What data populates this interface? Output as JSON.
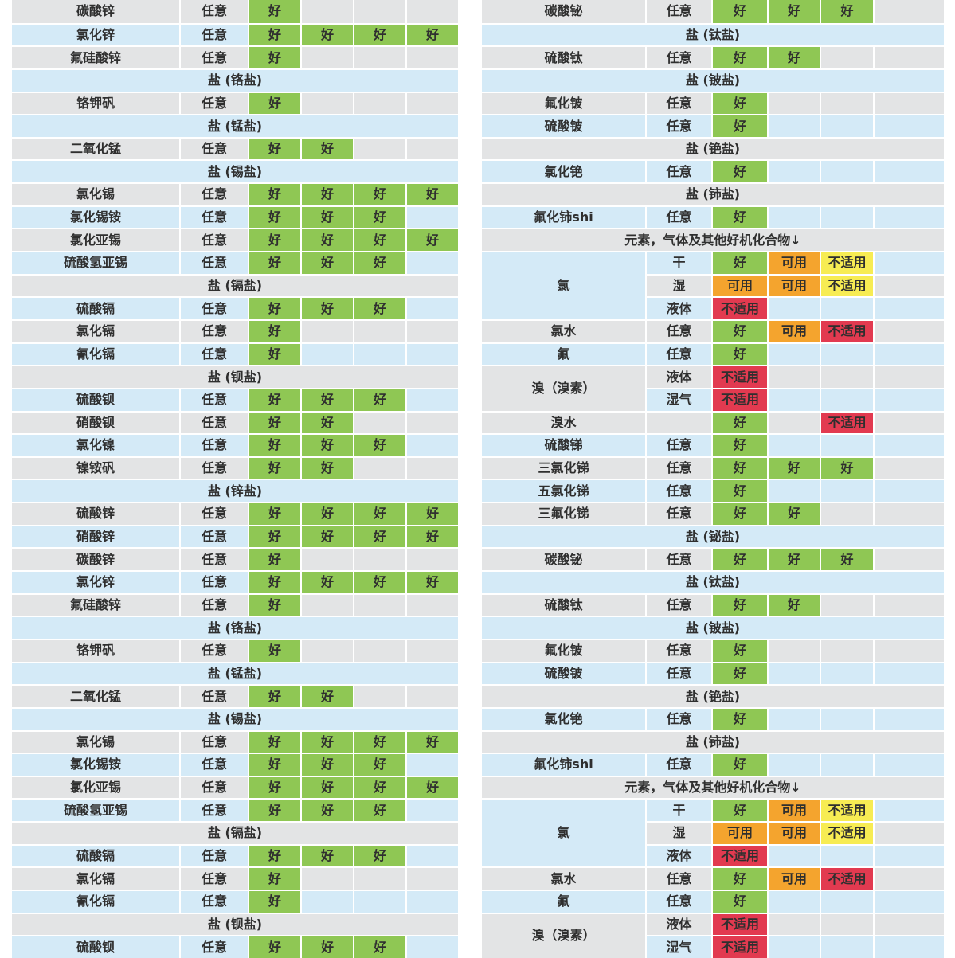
{
  "palette": {
    "row_gray": "#e3e4e5",
    "row_blue": "#d4eaf7",
    "good": "#8fc754",
    "usable": "#f4a42e",
    "na_yellow": "#f7ec53",
    "na_red": "#e23a50",
    "text": "#2f2f2f",
    "grid": "#ffffff"
  },
  "rating_codes": {
    "G": {
      "label": "好",
      "color_key": "good"
    },
    "U": {
      "label": "可用",
      "color_key": "usable"
    },
    "NY": {
      "label": "不适用",
      "color_key": "na_yellow"
    },
    "NR": {
      "label": "不适用",
      "color_key": "na_red"
    }
  },
  "tables": [
    {
      "id": "tbl-left",
      "rows": [
        {
          "type": "item",
          "name": "碳酸锌",
          "cond": "任意",
          "ratings": [
            "G",
            null,
            null,
            null
          ]
        },
        {
          "type": "item",
          "name": "氯化锌",
          "cond": "任意",
          "ratings": [
            "G",
            "G",
            "G",
            "G"
          ]
        },
        {
          "type": "item",
          "name": "氟硅酸锌",
          "cond": "任意",
          "ratings": [
            "G",
            null,
            null,
            null
          ]
        },
        {
          "type": "section",
          "label": "盐 (铬盐)"
        },
        {
          "type": "item",
          "name": "铬钾矾",
          "cond": "任意",
          "ratings": [
            "G",
            null,
            null,
            null
          ]
        },
        {
          "type": "section",
          "label": "盐 (锰盐)"
        },
        {
          "type": "item",
          "name": "二氧化锰",
          "cond": "任意",
          "ratings": [
            "G",
            "G",
            null,
            null
          ]
        },
        {
          "type": "section",
          "label": "盐 (锡盐)"
        },
        {
          "type": "item",
          "name": "氯化锡",
          "cond": "任意",
          "ratings": [
            "G",
            "G",
            "G",
            "G"
          ]
        },
        {
          "type": "item",
          "name": "氯化锡铵",
          "cond": "任意",
          "ratings": [
            "G",
            "G",
            "G",
            null
          ]
        },
        {
          "type": "item",
          "name": "氯化亚锡",
          "cond": "任意",
          "ratings": [
            "G",
            "G",
            "G",
            "G"
          ]
        },
        {
          "type": "item",
          "name": "硫酸氢亚锡",
          "cond": "任意",
          "ratings": [
            "G",
            "G",
            "G",
            null
          ]
        },
        {
          "type": "section",
          "label": "盐 (镉盐)"
        },
        {
          "type": "item",
          "name": "硫酸镉",
          "cond": "任意",
          "ratings": [
            "G",
            "G",
            "G",
            null
          ]
        },
        {
          "type": "item",
          "name": "氯化镉",
          "cond": "任意",
          "ratings": [
            "G",
            null,
            null,
            null
          ]
        },
        {
          "type": "item",
          "name": "氰化镉",
          "cond": "任意",
          "ratings": [
            "G",
            null,
            null,
            null
          ]
        },
        {
          "type": "section",
          "label": "盐 (钡盐)"
        },
        {
          "type": "item",
          "name": "硫酸钡",
          "cond": "任意",
          "ratings": [
            "G",
            "G",
            "G",
            null
          ]
        },
        {
          "type": "item",
          "name": "硝酸钡",
          "cond": "任意",
          "ratings": [
            "G",
            "G",
            null,
            null
          ]
        },
        {
          "type": "item",
          "name": "氯化镍",
          "cond": "任意",
          "ratings": [
            "G",
            "G",
            "G",
            null
          ]
        },
        {
          "type": "item",
          "name": "镍铵矾",
          "cond": "任意",
          "ratings": [
            "G",
            "G",
            null,
            null
          ]
        },
        {
          "type": "section",
          "label": "盐 (锌盐)"
        },
        {
          "type": "item",
          "name": "硫酸锌",
          "cond": "任意",
          "ratings": [
            "G",
            "G",
            "G",
            "G"
          ]
        },
        {
          "type": "item",
          "name": "硝酸锌",
          "cond": "任意",
          "ratings": [
            "G",
            "G",
            "G",
            "G"
          ]
        },
        {
          "type": "item",
          "name": "碳酸锌",
          "cond": "任意",
          "ratings": [
            "G",
            null,
            null,
            null
          ]
        },
        {
          "type": "item",
          "name": "氯化锌",
          "cond": "任意",
          "ratings": [
            "G",
            "G",
            "G",
            "G"
          ]
        },
        {
          "type": "item",
          "name": "氟硅酸锌",
          "cond": "任意",
          "ratings": [
            "G",
            null,
            null,
            null
          ]
        },
        {
          "type": "section",
          "label": "盐 (铬盐)"
        },
        {
          "type": "item",
          "name": "铬钾矾",
          "cond": "任意",
          "ratings": [
            "G",
            null,
            null,
            null
          ]
        },
        {
          "type": "section",
          "label": "盐 (锰盐)"
        },
        {
          "type": "item",
          "name": "二氧化锰",
          "cond": "任意",
          "ratings": [
            "G",
            "G",
            null,
            null
          ]
        },
        {
          "type": "section",
          "label": "盐 (锡盐)"
        },
        {
          "type": "item",
          "name": "氯化锡",
          "cond": "任意",
          "ratings": [
            "G",
            "G",
            "G",
            "G"
          ]
        },
        {
          "type": "item",
          "name": "氯化锡铵",
          "cond": "任意",
          "ratings": [
            "G",
            "G",
            "G",
            null
          ]
        },
        {
          "type": "item",
          "name": "氯化亚锡",
          "cond": "任意",
          "ratings": [
            "G",
            "G",
            "G",
            "G"
          ]
        },
        {
          "type": "item",
          "name": "硫酸氢亚锡",
          "cond": "任意",
          "ratings": [
            "G",
            "G",
            "G",
            null
          ]
        },
        {
          "type": "section",
          "label": "盐 (镉盐)"
        },
        {
          "type": "item",
          "name": "硫酸镉",
          "cond": "任意",
          "ratings": [
            "G",
            "G",
            "G",
            null
          ]
        },
        {
          "type": "item",
          "name": "氯化镉",
          "cond": "任意",
          "ratings": [
            "G",
            null,
            null,
            null
          ]
        },
        {
          "type": "item",
          "name": "氰化镉",
          "cond": "任意",
          "ratings": [
            "G",
            null,
            null,
            null
          ]
        },
        {
          "type": "section",
          "label": "盐 (钡盐)"
        },
        {
          "type": "item",
          "name": "硫酸钡",
          "cond": "任意",
          "ratings": [
            "G",
            "G",
            "G",
            null
          ]
        }
      ]
    },
    {
      "id": "tbl-right",
      "rows": [
        {
          "type": "item",
          "name": "碳酸铋",
          "cond": "任意",
          "ratings": [
            "G",
            "G",
            "G",
            null
          ]
        },
        {
          "type": "section",
          "label": "盐 (钛盐)"
        },
        {
          "type": "item",
          "name": "硫酸钛",
          "cond": "任意",
          "ratings": [
            "G",
            "G",
            null,
            null
          ]
        },
        {
          "type": "section",
          "label": "盐 (铍盐)"
        },
        {
          "type": "item",
          "name": "氟化铍",
          "cond": "任意",
          "ratings": [
            "G",
            null,
            null,
            null
          ]
        },
        {
          "type": "item",
          "name": "硫酸铍",
          "cond": "任意",
          "ratings": [
            "G",
            null,
            null,
            null
          ]
        },
        {
          "type": "section",
          "label": "盐 (铯盐)"
        },
        {
          "type": "item",
          "name": "氯化铯",
          "cond": "任意",
          "ratings": [
            "G",
            null,
            null,
            null
          ]
        },
        {
          "type": "section",
          "label": "盐 (铈盐)"
        },
        {
          "type": "item",
          "name": "氟化铈shi",
          "cond": "任意",
          "ratings": [
            "G",
            null,
            null,
            null
          ]
        },
        {
          "type": "section",
          "label": "元素，气体及其他好机化合物↓"
        },
        {
          "type": "group",
          "name": "氯",
          "subrows": [
            {
              "cond": "干",
              "ratings": [
                "G",
                "U",
                "NY",
                null
              ]
            },
            {
              "cond": "湿",
              "ratings": [
                "U",
                "U",
                "NY",
                null
              ]
            },
            {
              "cond": "液体",
              "ratings": [
                "NR",
                null,
                null,
                null
              ]
            }
          ]
        },
        {
          "type": "item",
          "name": "氯水",
          "cond": "任意",
          "ratings": [
            "G",
            "U",
            "NR",
            null
          ]
        },
        {
          "type": "item",
          "name": "氟",
          "cond": "任意",
          "ratings": [
            "G",
            null,
            null,
            null
          ]
        },
        {
          "type": "group",
          "name": "溴（溴素）",
          "subrows": [
            {
              "cond": "液体",
              "ratings": [
                "NR",
                null,
                null,
                null
              ]
            },
            {
              "cond": "湿气",
              "ratings": [
                "NR",
                null,
                null,
                null
              ]
            }
          ]
        },
        {
          "type": "item",
          "name": "溴水",
          "cond": "",
          "ratings": [
            "G",
            null,
            "NR",
            null
          ]
        },
        {
          "type": "item",
          "name": "硫酸锑",
          "cond": "任意",
          "ratings": [
            "G",
            null,
            null,
            null
          ]
        },
        {
          "type": "item",
          "name": "三氯化锑",
          "cond": "任意",
          "ratings": [
            "G",
            "G",
            "G",
            null
          ]
        },
        {
          "type": "item",
          "name": "五氯化锑",
          "cond": "任意",
          "ratings": [
            "G",
            null,
            null,
            null
          ]
        },
        {
          "type": "item",
          "name": "三氟化锑",
          "cond": "任意",
          "ratings": [
            "G",
            "G",
            null,
            null
          ]
        },
        {
          "type": "section",
          "label": "盐 (铋盐)"
        },
        {
          "type": "item",
          "name": "碳酸铋",
          "cond": "任意",
          "ratings": [
            "G",
            "G",
            "G",
            null
          ]
        },
        {
          "type": "section",
          "label": "盐 (钛盐)"
        },
        {
          "type": "item",
          "name": "硫酸钛",
          "cond": "任意",
          "ratings": [
            "G",
            "G",
            null,
            null
          ]
        },
        {
          "type": "section",
          "label": "盐 (铍盐)"
        },
        {
          "type": "item",
          "name": "氟化铍",
          "cond": "任意",
          "ratings": [
            "G",
            null,
            null,
            null
          ]
        },
        {
          "type": "item",
          "name": "硫酸铍",
          "cond": "任意",
          "ratings": [
            "G",
            null,
            null,
            null
          ]
        },
        {
          "type": "section",
          "label": "盐 (铯盐)"
        },
        {
          "type": "item",
          "name": "氯化铯",
          "cond": "任意",
          "ratings": [
            "G",
            null,
            null,
            null
          ]
        },
        {
          "type": "section",
          "label": "盐 (铈盐)"
        },
        {
          "type": "item",
          "name": "氟化铈shi",
          "cond": "任意",
          "ratings": [
            "G",
            null,
            null,
            null
          ]
        },
        {
          "type": "section",
          "label": "元素，气体及其他好机化合物↓"
        },
        {
          "type": "group",
          "name": "氯",
          "subrows": [
            {
              "cond": "干",
              "ratings": [
                "G",
                "U",
                "NY",
                null
              ]
            },
            {
              "cond": "湿",
              "ratings": [
                "U",
                "U",
                "NY",
                null
              ]
            },
            {
              "cond": "液体",
              "ratings": [
                "NR",
                null,
                null,
                null
              ]
            }
          ]
        },
        {
          "type": "item",
          "name": "氯水",
          "cond": "任意",
          "ratings": [
            "G",
            "U",
            "NR",
            null
          ]
        },
        {
          "type": "item",
          "name": "氟",
          "cond": "任意",
          "ratings": [
            "G",
            null,
            null,
            null
          ]
        },
        {
          "type": "group",
          "name": "溴（溴素）",
          "subrows": [
            {
              "cond": "液体",
              "ratings": [
                "NR",
                null,
                null,
                null
              ]
            },
            {
              "cond": "湿气",
              "ratings": [
                "NR",
                null,
                null,
                null
              ]
            }
          ]
        }
      ]
    }
  ]
}
